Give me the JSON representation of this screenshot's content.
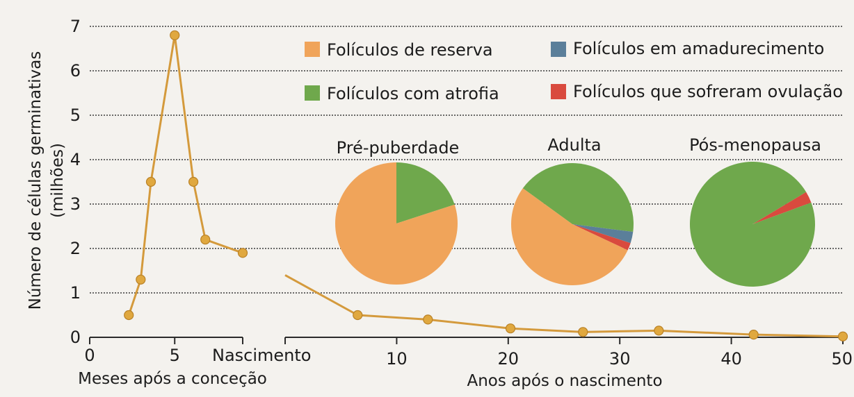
{
  "colors": {
    "line": "#d49a3c",
    "marker": "#e0a83f",
    "reserva": "#f0a45a",
    "atrofia": "#6fa84c",
    "amadurecimento": "#5b7f9a",
    "ovulacao": "#d94a3e",
    "grid": "#3a3a3a",
    "axis": "#2a2a2a"
  },
  "y_axis": {
    "label_line1": "Número de células germinativas",
    "label_line2": "(milhões)"
  },
  "legend": {
    "reserva": "Folículos de reserva",
    "amadurecimento": "Folículos em amadurecimento",
    "atrofia": "Folículos com atrofia",
    "ovulacao": "Folículos que sofreram ovulação"
  },
  "chart_data": [
    {
      "type": "line",
      "xlabel": "Meses após a conceção",
      "ylabel": "Número de células germinativas (milhões)",
      "xlim": [
        0,
        9
      ],
      "ylim": [
        0,
        7
      ],
      "grid": true,
      "x_tick_labels": [
        "0",
        "5",
        "Nascimento"
      ],
      "y_tick_labels": [
        "0",
        "1",
        "2",
        "3",
        "4",
        "5",
        "6",
        "7"
      ],
      "series": [
        {
          "x": [
            2.3,
            3.0,
            3.6,
            5.0,
            6.1,
            6.8,
            9.0
          ],
          "y": [
            0.5,
            1.3,
            3.5,
            6.8,
            3.5,
            2.2,
            1.9
          ]
        }
      ]
    },
    {
      "type": "line",
      "xlabel": "Anos após o nascimento",
      "xlim": [
        0,
        50
      ],
      "ylim": [
        0,
        7
      ],
      "x_tick_labels": [
        "0",
        "10",
        "20",
        "30",
        "40",
        "50"
      ],
      "series": [
        {
          "x": [
            0,
            6.5,
            12.8,
            20.2,
            26.7,
            33.5,
            42,
            50
          ],
          "y": [
            1.4,
            0.5,
            0.4,
            0.2,
            0.12,
            0.15,
            0.06,
            0.02
          ],
          "markers_from_index": 1
        }
      ]
    },
    {
      "type": "pie",
      "title": "Pré-puberdade",
      "slices": [
        {
          "label": "Folículos com atrofia",
          "value": 20
        },
        {
          "label": "Folículos de reserva",
          "value": 80
        }
      ]
    },
    {
      "type": "pie",
      "title": "Adulta",
      "slices": [
        {
          "label": "Folículos com atrofia",
          "value": 42
        },
        {
          "label": "Folículos em amadurecimento",
          "value": 3
        },
        {
          "label": "Folículos que sofreram ovulação",
          "value": 2
        },
        {
          "label": "Folículos de reserva",
          "value": 53
        }
      ]
    },
    {
      "type": "pie",
      "title": "Pós-menopausa",
      "slices": [
        {
          "label": "Folículos que sofreram ovulação",
          "value": 3
        },
        {
          "label": "Folículos com atrofia",
          "value": 97
        }
      ]
    }
  ]
}
